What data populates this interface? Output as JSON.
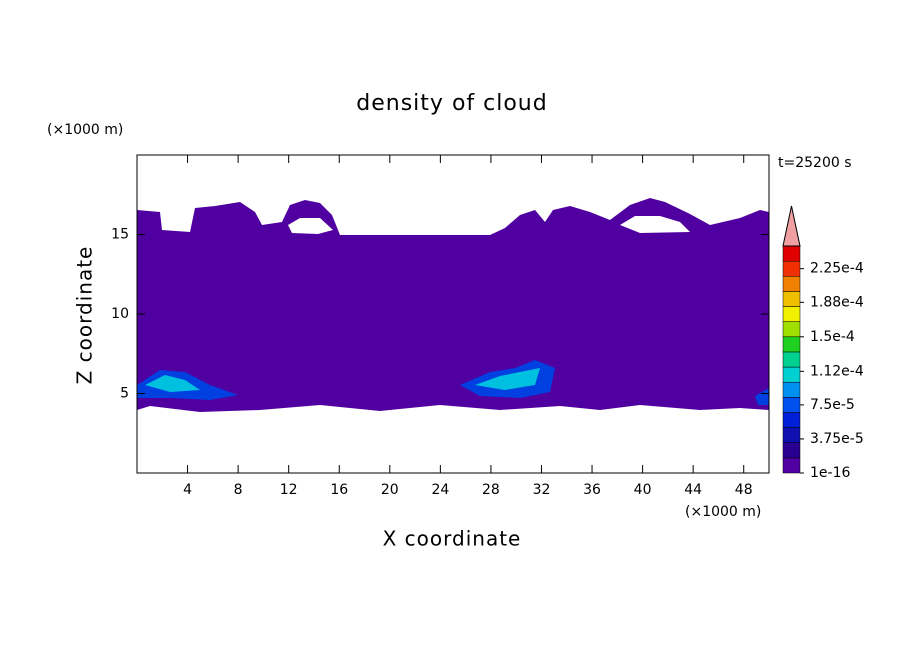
{
  "chart_data": {
    "type": "contour",
    "title": "density of cloud",
    "xlabel": "X coordinate",
    "ylabel": "Z coordinate",
    "x_unit": "(×1000 m)",
    "y_unit": "(×1000 m)",
    "annotation": "t=25200 s",
    "xlim": [
      0,
      50
    ],
    "ylim": [
      0,
      20
    ],
    "xticks": [
      4,
      8,
      12,
      16,
      20,
      24,
      28,
      32,
      36,
      40,
      44,
      48
    ],
    "yticks": [
      5,
      10,
      15
    ],
    "colorbar": {
      "clim": [
        0,
        0.00025
      ],
      "colors": [
        "#5000a0",
        "#2a0090",
        "#1010b0",
        "#0020d8",
        "#0050f0",
        "#0090f0",
        "#00d0d0",
        "#00d090",
        "#20d020",
        "#a0e000",
        "#f0f000",
        "#f0c000",
        "#f08000",
        "#f03000",
        "#e00000"
      ],
      "extend_color": "#f0a0a0",
      "ticks": [
        {
          "value": 1e-16,
          "label": "1e-16"
        },
        {
          "value": 3.75e-05,
          "label": "3.75e-5"
        },
        {
          "value": 7.5e-05,
          "label": "7.5e-5"
        },
        {
          "value": 0.000112,
          "label": "1.12e-4"
        },
        {
          "value": 0.00015,
          "label": "1.5e-4"
        },
        {
          "value": 0.000188,
          "label": "1.88e-4"
        },
        {
          "value": 0.000225,
          "label": "2.25e-4"
        }
      ]
    }
  }
}
